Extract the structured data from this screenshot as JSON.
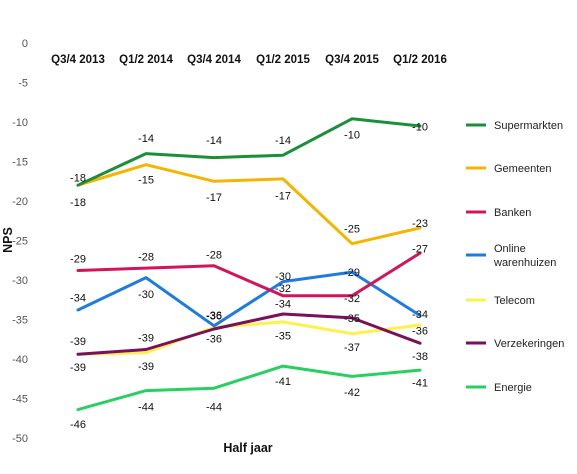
{
  "chart_data": {
    "type": "line",
    "xlabel": "Half jaar",
    "ylabel": "NPS",
    "ylim": [
      -50,
      0
    ],
    "yticks": [
      0,
      -5,
      -10,
      -15,
      -20,
      -25,
      -30,
      -35,
      -40,
      -45,
      -50
    ],
    "categories": [
      "Q3/4 2013",
      "Q1/2 2014",
      "Q3/4 2014",
      "Q1/2 2015",
      "Q3/4 2015",
      "Q1/2 2016"
    ],
    "grid": false,
    "legend_position": "right",
    "series": [
      {
        "name": "Supermarkten",
        "color": "#1a8f3a",
        "values": [
          -18,
          -14,
          -14.5,
          -14.2,
          -9.6,
          -10.5
        ]
      },
      {
        "name": "Gemeenten",
        "color": "#f5b400",
        "values": [
          -18,
          -15.4,
          -17.5,
          -17.2,
          -25.4,
          -23.4
        ]
      },
      {
        "name": "Banken",
        "color": "#d4145a",
        "values": [
          -28.8,
          -28.5,
          -28.2,
          -32,
          -32,
          -26.6
        ]
      },
      {
        "name": "Online warenhuizen",
        "color": "#1f7be0",
        "values": [
          -33.8,
          -29.7,
          -35.8,
          -30.2,
          -29,
          -34.5
        ]
      },
      {
        "name": "Telecom",
        "color": "#fff04a",
        "values": [
          -39.4,
          -39.2,
          -36,
          -35.3,
          -36.8,
          -35.7
        ]
      },
      {
        "name": "Verzekeringen",
        "color": "#7a0f5c",
        "values": [
          -39.4,
          -38.8,
          -36.2,
          -34.3,
          -34.8,
          -38
        ]
      },
      {
        "name": "Energie",
        "color": "#27d060",
        "values": [
          -46.4,
          -44,
          -43.7,
          -40.9,
          -42.2,
          -41.4
        ]
      }
    ],
    "data_labels": [
      {
        "text": "-18",
        "x": 0,
        "y": -17.0
      },
      {
        "text": "-18",
        "x": 0,
        "y": -20.1
      },
      {
        "text": "-14",
        "x": 1,
        "y": -12.0
      },
      {
        "text": "-15",
        "x": 1,
        "y": -17.3
      },
      {
        "text": "-14",
        "x": 2,
        "y": -12.3
      },
      {
        "text": "-17",
        "x": 2,
        "y": -19.5
      },
      {
        "text": "-14",
        "x": 3,
        "y": -12.3
      },
      {
        "text": "-17",
        "x": 3,
        "y": -19.3
      },
      {
        "text": "-10",
        "x": 4,
        "y": -11.6
      },
      {
        "text": "-25",
        "x": 4,
        "y": -23.5
      },
      {
        "text": "-10",
        "x": 5,
        "y": -10.6
      },
      {
        "text": "-23",
        "x": 5,
        "y": -22.8
      },
      {
        "text": "-29",
        "x": 0,
        "y": -27.3
      },
      {
        "text": "-28",
        "x": 1,
        "y": -27.0
      },
      {
        "text": "-28",
        "x": 2,
        "y": -26.8
      },
      {
        "text": "-32",
        "x": 3,
        "y": -31.0
      },
      {
        "text": "-32",
        "x": 4,
        "y": -32.3
      },
      {
        "text": "-27",
        "x": 5,
        "y": -26.0
      },
      {
        "text": "-34",
        "x": 0,
        "y": -32.2
      },
      {
        "text": "-30",
        "x": 1,
        "y": -31.8
      },
      {
        "text": "-36",
        "x": 2,
        "y": -34.4
      },
      {
        "text": "-30",
        "x": 3,
        "y": -29.5
      },
      {
        "text": "-29",
        "x": 4,
        "y": -29.0
      },
      {
        "text": "-34",
        "x": 5,
        "y": -34.3
      },
      {
        "text": "-36",
        "x": 2,
        "y": -34.5
      },
      {
        "text": "-36",
        "x": 2,
        "y": -37.4
      },
      {
        "text": "-35",
        "x": 3,
        "y": -37.0
      },
      {
        "text": "-37",
        "x": 4,
        "y": -38.5
      },
      {
        "text": "-36",
        "x": 5,
        "y": -36.4
      },
      {
        "text": "-39",
        "x": 0,
        "y": -37.7
      },
      {
        "text": "-39",
        "x": 0,
        "y": -41.0
      },
      {
        "text": "-39",
        "x": 1,
        "y": -37.3
      },
      {
        "text": "-39",
        "x": 1,
        "y": -40.9
      },
      {
        "text": "-34",
        "x": 3,
        "y": -33.0
      },
      {
        "text": "-35",
        "x": 4,
        "y": -34.8
      },
      {
        "text": "-38",
        "x": 5,
        "y": -39.6
      },
      {
        "text": "-46",
        "x": 0,
        "y": -48.2
      },
      {
        "text": "-44",
        "x": 1,
        "y": -46.0
      },
      {
        "text": "-44",
        "x": 2,
        "y": -46.0
      },
      {
        "text": "-41",
        "x": 3,
        "y": -42.8
      },
      {
        "text": "-42",
        "x": 4,
        "y": -44.2
      },
      {
        "text": "-41",
        "x": 5,
        "y": -43.0
      }
    ]
  }
}
